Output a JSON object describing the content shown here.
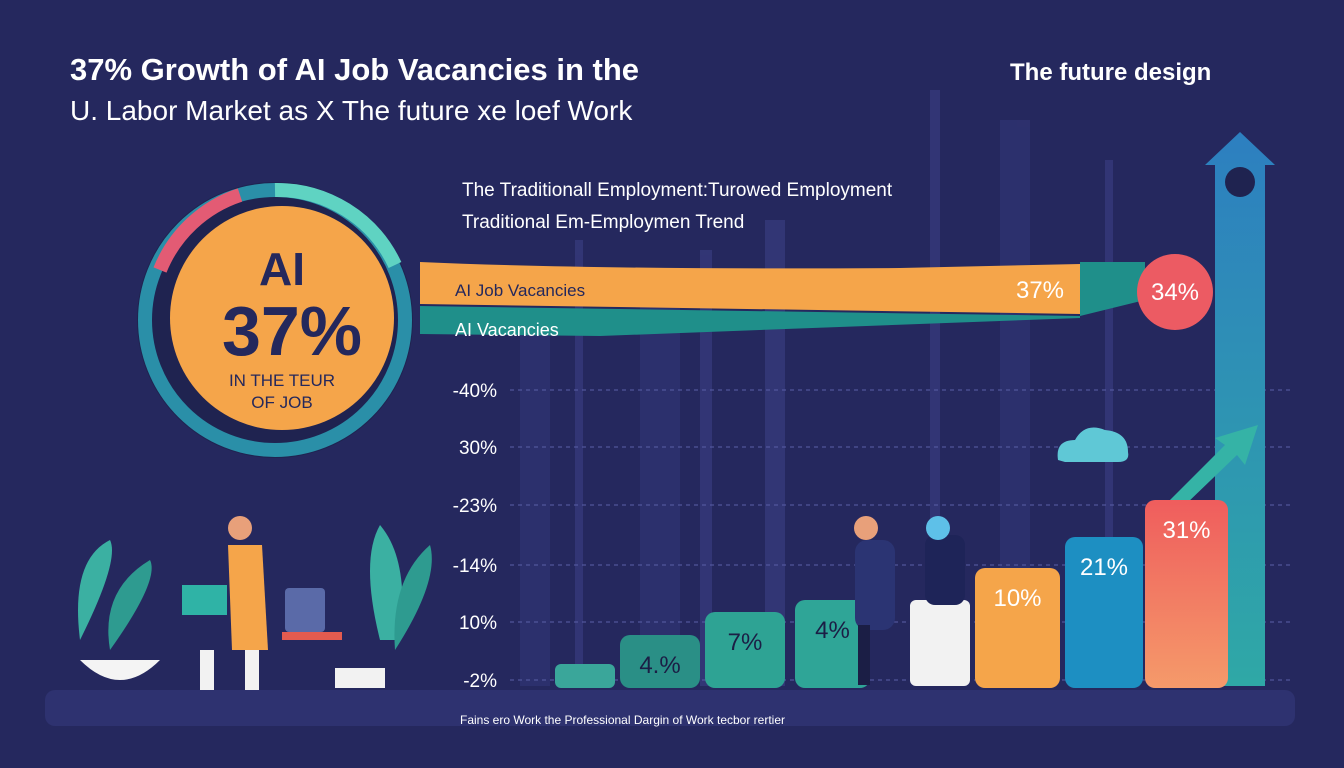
{
  "header": {
    "title_line1": "37% Growth of AI Job Vacancies in the",
    "title_line2": "U. Labor Market as X The future xe loef Work",
    "brand": "The future design"
  },
  "donut": {
    "label": "AI",
    "value": "37%",
    "caption_1": "IN THE TEUR",
    "caption_2": "OF JOB"
  },
  "legend": [
    "The Traditionall Employment:Turowed Employment",
    "Traditional Em-Employmen Trend"
  ],
  "bands": [
    {
      "label": "AI Job Vacancies",
      "value": "37%"
    },
    {
      "label": "AI Vacancies"
    }
  ],
  "badge": "34%",
  "axis_labels": [
    "-40%",
    "30%",
    "-23%",
    "-14%",
    "10%",
    "-2%"
  ],
  "bar_labels": [
    "4.%",
    "7%",
    "4%",
    "10%",
    "21%",
    "31%"
  ],
  "footer": "Fains ero Work the Professional Dargin of Work tecbor rertier"
}
